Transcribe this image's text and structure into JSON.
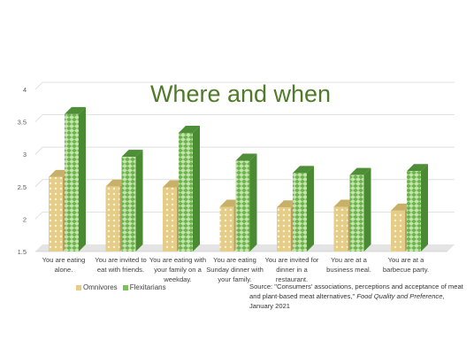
{
  "chart_data": {
    "type": "bar",
    "title": "Where and when",
    "categories": [
      [
        "You are eating",
        "alone."
      ],
      [
        "You are invited to",
        "eat with friends."
      ],
      [
        "You are eating with",
        "your family on a",
        "weekday."
      ],
      [
        "You are eating",
        "Sunday dinner with",
        "your family."
      ],
      [
        "You are invited for",
        "dinner in a",
        "restaurant."
      ],
      [
        "You are at a",
        "business meal."
      ],
      [
        "You are at a",
        "barbecue party."
      ]
    ],
    "series": [
      {
        "name": "Omnivores",
        "values": [
          2.65,
          2.5,
          2.49,
          2.19,
          2.18,
          2.19,
          2.13
        ]
      },
      {
        "name": "Flexitarians",
        "values": [
          3.62,
          2.96,
          3.33,
          2.9,
          2.71,
          2.68,
          2.74
        ]
      }
    ],
    "yticks": [
      "1.5",
      "2",
      "2.5",
      "3",
      "3.5",
      "4"
    ],
    "ylim": [
      1.5,
      4
    ],
    "grid": true,
    "legend_position": "bottom-left"
  },
  "colors": {
    "omnivores_face": "#e6cd87",
    "omnivores_top": "#c9b068",
    "omnivores_side": "#b8a060",
    "flexitarians_face": "#79c35a",
    "flexitarians_top": "#4e8e36",
    "flexitarians_side": "#4a8a32",
    "title": "#4f7a28"
  },
  "source": {
    "prefix": "Source: \"Consumers' associations, perceptions and acceptance of meat and plant-based meat alternatives,\"",
    "journal": "Food Quality and Preference",
    "suffix": ", January 2021"
  }
}
